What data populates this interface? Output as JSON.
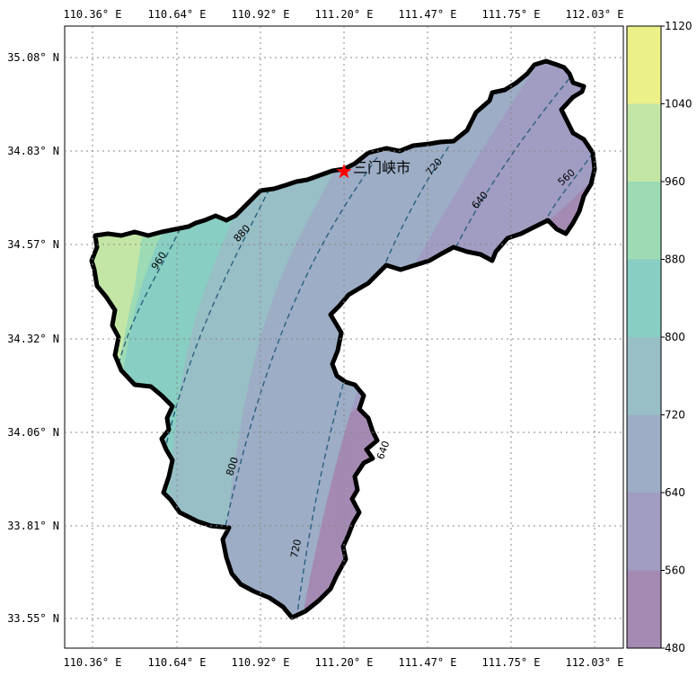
{
  "map": {
    "lon_labels": [
      "110.36° E",
      "110.64° E",
      "110.92° E",
      "111.20° E",
      "111.47° E",
      "111.75° E",
      "112.03° E"
    ],
    "lat_labels": [
      "35.08° N",
      "34.83° N",
      "34.57° N",
      "34.32° N",
      "34.06° N",
      "33.81° N",
      "33.55° N"
    ],
    "city": {
      "name": "三门峡市",
      "marker": "red-star-icon"
    },
    "contour_labels": [
      {
        "text": "960"
      },
      {
        "text": "880"
      },
      {
        "text": "800"
      },
      {
        "text": "720"
      },
      {
        "text": "720"
      },
      {
        "text": "640"
      },
      {
        "text": "640"
      },
      {
        "text": "560"
      }
    ],
    "colorbar": {
      "ticks": [
        "1120",
        "1040",
        "960",
        "880",
        "800",
        "720",
        "640",
        "560",
        "480"
      ],
      "colors": [
        "#ecf089",
        "#c3e6a6",
        "#9ddbb4",
        "#88cec2",
        "#98bec6",
        "#9cadc5",
        "#a09cc2",
        "#a48ab3"
      ]
    },
    "colors": {
      "boundary": "#000000",
      "contour_line": "#2a5f7f",
      "grid": "#888888",
      "city_star": "#ff0000"
    }
  }
}
